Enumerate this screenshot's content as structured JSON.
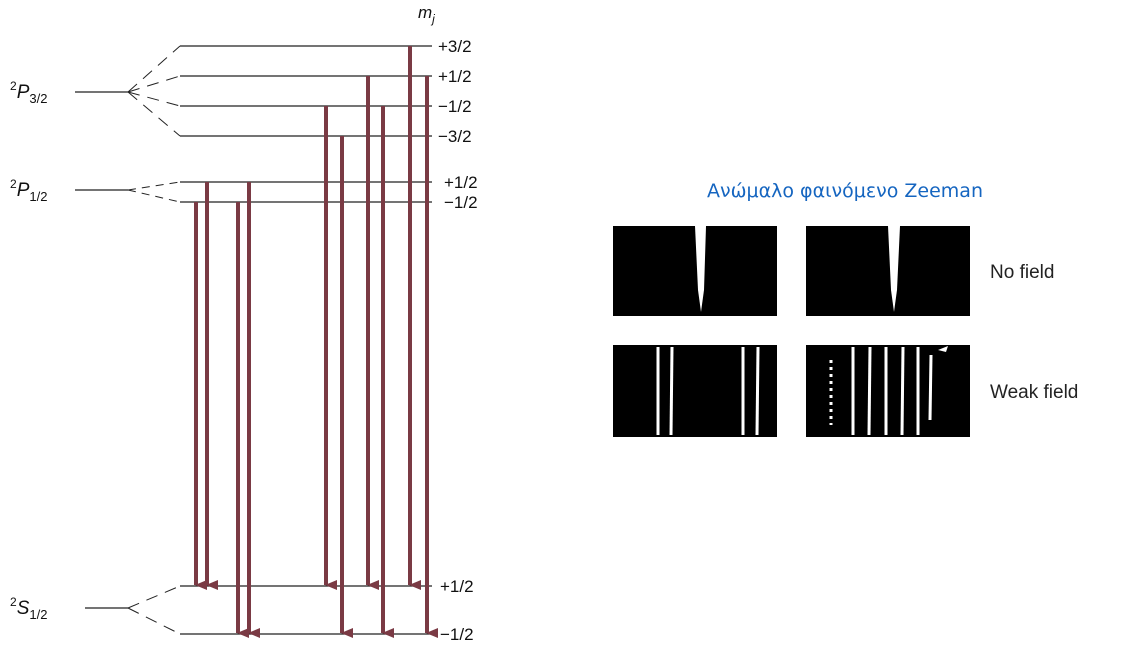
{
  "mj_header": {
    "main": "m",
    "sub": "j"
  },
  "levels": [
    {
      "sup": "2",
      "main": "P",
      "sub": "3/2",
      "mj": [
        "+3/2",
        "+1/2",
        "−1/2",
        "−3/2"
      ]
    },
    {
      "sup": "2",
      "main": "P",
      "sub": "1/2",
      "mj": [
        "+1/2",
        "−1/2"
      ]
    },
    {
      "sup": "2",
      "main": "S",
      "sub": "1/2",
      "mj": [
        "+1/2",
        "−1/2"
      ]
    }
  ],
  "panel": {
    "title": "Ανώμαλο φαινόμενο Zeeman",
    "rows": [
      "No field",
      "Weak field"
    ]
  }
}
